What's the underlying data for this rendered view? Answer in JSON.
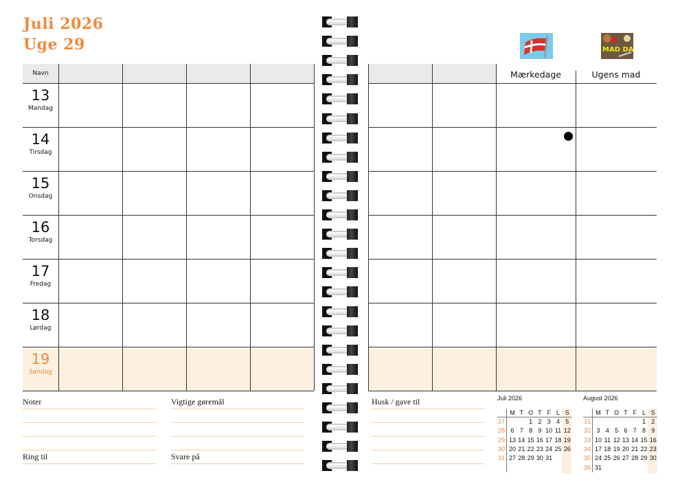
{
  "header": {
    "month_year": "Juli 2026",
    "week": "Uge 29"
  },
  "left_table": {
    "name_header": "Navn"
  },
  "right_table": {
    "col3_header": "Mærkedage",
    "col4_header": "Ugens mad",
    "flag_icon": "danish-flag-icon",
    "food_icon_label": "MAD DAG"
  },
  "days": [
    {
      "num": "13",
      "name": "Mandag",
      "sunday": false
    },
    {
      "num": "14",
      "name": "Tirsdag",
      "sunday": false
    },
    {
      "num": "15",
      "name": "Onsdag",
      "sunday": false
    },
    {
      "num": "16",
      "name": "Torsdag",
      "sunday": false
    },
    {
      "num": "17",
      "name": "Fredag",
      "sunday": false
    },
    {
      "num": "18",
      "name": "Lørdag",
      "sunday": false
    },
    {
      "num": "19",
      "name": "Søndag",
      "sunday": true
    }
  ],
  "marker_dot_day": "14",
  "notes": {
    "noter": "Noter",
    "vigtige": "Vigtige gøremål",
    "ring_til": "Ring til",
    "svare_paa": "Svare på",
    "husk": "Husk / gave til"
  },
  "colors": {
    "accent": "#ef8a3d",
    "sunday_bg": "#fdf0e1",
    "header_bg": "#e9eaea"
  },
  "mini_calendars": [
    {
      "title": "Juli 2026",
      "days_header": [
        "M",
        "T",
        "O",
        "T",
        "F",
        "L",
        "S"
      ],
      "weeks": [
        {
          "wk": "27",
          "days": [
            "",
            "",
            "1",
            "2",
            "3",
            "4",
            "5"
          ]
        },
        {
          "wk": "28",
          "days": [
            "6",
            "7",
            "8",
            "9",
            "10",
            "11",
            "12"
          ]
        },
        {
          "wk": "29",
          "days": [
            "13",
            "14",
            "15",
            "16",
            "17",
            "18",
            "19"
          ]
        },
        {
          "wk": "30",
          "days": [
            "20",
            "21",
            "22",
            "23",
            "24",
            "25",
            "26"
          ]
        },
        {
          "wk": "31",
          "days": [
            "27",
            "28",
            "29",
            "30",
            "31",
            "",
            ""
          ]
        }
      ]
    },
    {
      "title": "August 2026",
      "days_header": [
        "M",
        "T",
        "O",
        "T",
        "F",
        "L",
        "S"
      ],
      "weeks": [
        {
          "wk": "31",
          "days": [
            "",
            "",
            "",
            "",
            "",
            "1",
            "2"
          ]
        },
        {
          "wk": "32",
          "days": [
            "3",
            "4",
            "5",
            "6",
            "7",
            "8",
            "9"
          ]
        },
        {
          "wk": "33",
          "days": [
            "10",
            "11",
            "12",
            "13",
            "14",
            "15",
            "16"
          ]
        },
        {
          "wk": "34",
          "days": [
            "17",
            "18",
            "19",
            "20",
            "21",
            "22",
            "23"
          ]
        },
        {
          "wk": "35",
          "days": [
            "24",
            "25",
            "26",
            "27",
            "28",
            "29",
            "30"
          ]
        },
        {
          "wk": "36",
          "days": [
            "31",
            "",
            "",
            "",
            "",
            "",
            ""
          ]
        }
      ]
    }
  ]
}
